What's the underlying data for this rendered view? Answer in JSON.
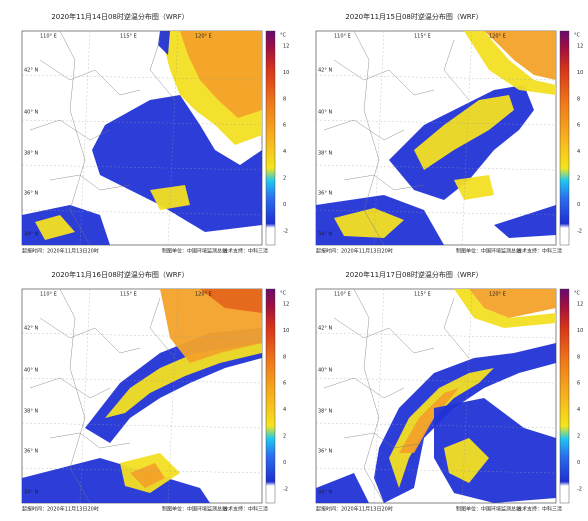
{
  "panels": [
    {
      "title": "2020年11月14日08时逆温分布图（WRF）"
    },
    {
      "title": "2020年11月15日08时逆温分布图（WRF）"
    },
    {
      "title": "2020年11月16日08时逆温分布图（WRF）"
    },
    {
      "title": "2020年11月17日08时逆温分布图（WRF）"
    }
  ],
  "colorbar": {
    "unit": "°C",
    "ticks": [
      12,
      10,
      8,
      6,
      4,
      2,
      0,
      -2
    ]
  },
  "longitudes": [
    "110° E",
    "115° E",
    "120° E"
  ],
  "latitudes": [
    "42° N",
    "40° N",
    "38° N",
    "36° N",
    "34° N"
  ],
  "footer": {
    "issue_time": "起报时间：2020年11月13日20时",
    "unit": "制图单位：中国环境监测总站",
    "support": "技术支持：中科三清"
  }
}
